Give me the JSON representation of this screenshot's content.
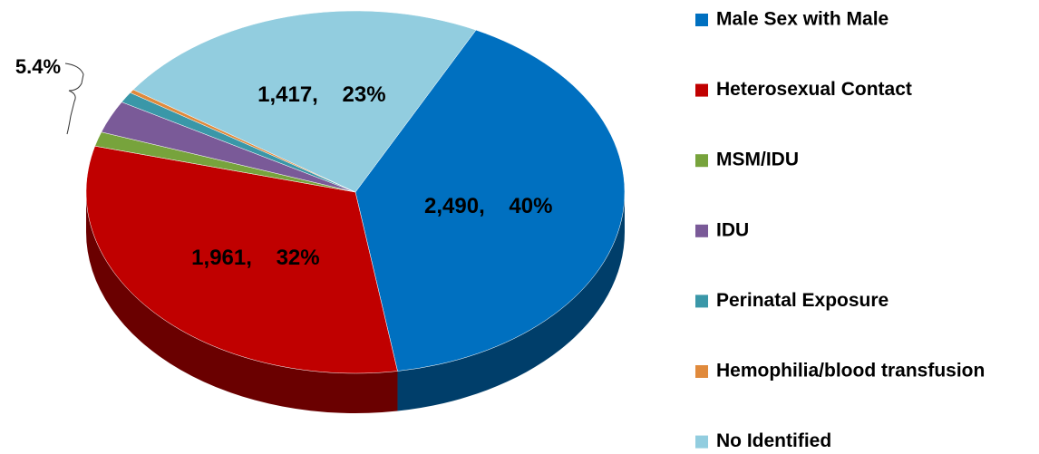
{
  "chart_data": {
    "type": "pie",
    "categories": [
      "Male Sex with Male",
      "Heterosexual Contact",
      "MSM/IDU",
      "IDU",
      "Perinatal Exposure",
      "Hemophilia/blood transfusion",
      "No Identified"
    ],
    "values": [
      2490,
      1961,
      80,
      180,
      60,
      20,
      1417
    ],
    "value_labels": [
      "2,490,    40%",
      "1,961,    32%",
      null,
      null,
      null,
      null,
      "1,417,    23%"
    ],
    "colors": [
      "#0070c0",
      "#c00000",
      "#77a33c",
      "#7a5a98",
      "#3a97a8",
      "#e08a3c",
      "#92cddf"
    ],
    "annotation": "5.4%"
  }
}
